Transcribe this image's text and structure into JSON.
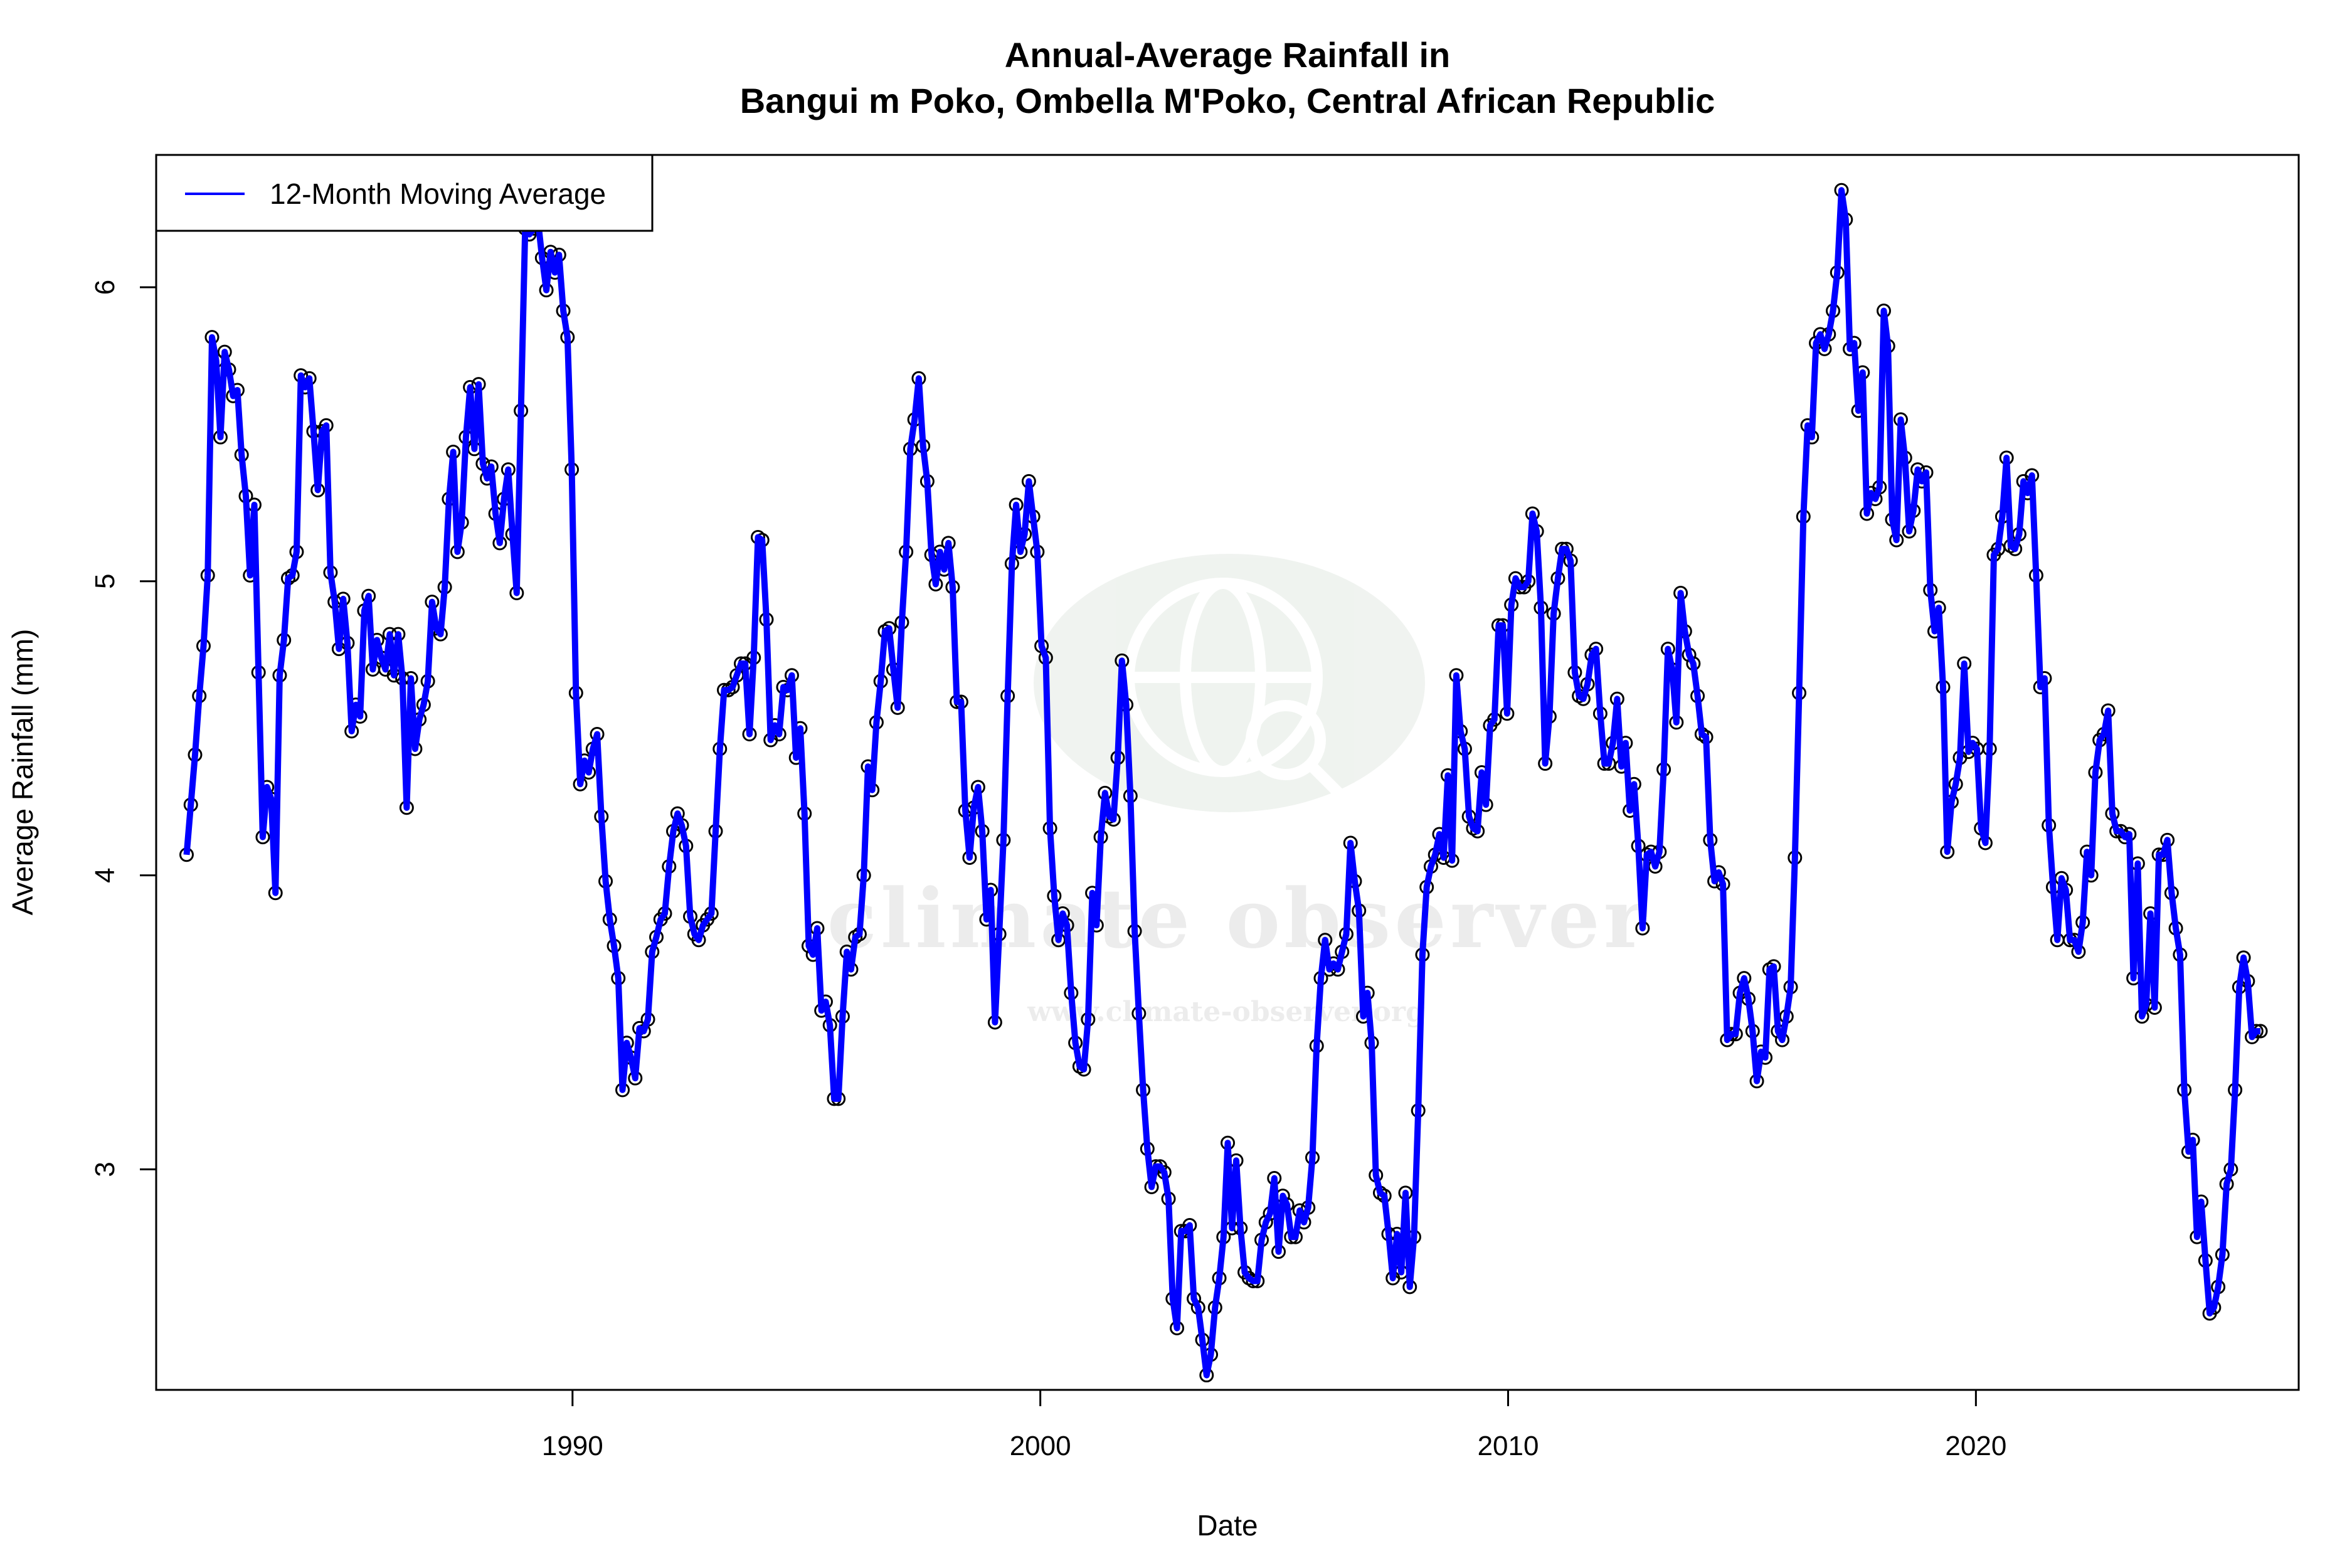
{
  "chart_data": {
    "type": "line",
    "title": "Annual-Average Rainfall in",
    "subtitle": "Bangui m Poko, Ombella M'Poko, Central African Republic",
    "xlabel": "Date",
    "ylabel": "Average Rainfall (mm)",
    "x_ticks": [
      "1990",
      "2000",
      "2010",
      "2020"
    ],
    "y_ticks": [
      "3",
      "4",
      "5",
      "6"
    ],
    "xlim": [
      1981.1,
      2026.9
    ],
    "ylim": [
      2.25,
      6.45
    ],
    "grid": false,
    "legend": {
      "position": "top-left",
      "entries": [
        "12-Month Moving Average"
      ]
    },
    "series": [
      {
        "name": "12-Month Moving Average",
        "color": "#0000ff",
        "markers": "open-circle",
        "date_start": "1981-10",
        "date_end": "2026-02",
        "frequency": "monthly",
        "values": [
          4.07,
          4.24,
          4.41,
          4.61,
          4.78,
          5.02,
          5.83,
          5.75,
          5.49,
          5.78,
          5.72,
          5.63,
          5.65,
          5.43,
          5.29,
          5.02,
          5.26,
          4.69,
          4.13,
          4.3,
          4.26,
          3.94,
          4.68,
          4.8,
          5.01,
          5.02,
          5.1,
          5.7,
          5.66,
          5.69,
          5.51,
          5.31,
          5.51,
          5.53,
          5.03,
          4.93,
          4.77,
          4.94,
          4.79,
          4.49,
          4.58,
          4.54,
          4.9,
          4.95,
          4.7,
          4.8,
          4.74,
          4.7,
          4.82,
          4.68,
          4.82,
          4.67,
          4.23,
          4.67,
          4.43,
          4.53,
          4.58,
          4.66,
          4.93,
          4.84,
          4.82,
          4.98,
          5.28,
          5.44,
          5.1,
          5.2,
          5.49,
          5.66,
          5.45,
          5.67,
          5.4,
          5.35,
          5.39,
          5.23,
          5.13,
          5.28,
          5.38,
          5.16,
          4.96,
          5.58,
          6.2,
          6.18,
          6.2,
          6.23,
          6.1,
          5.99,
          6.12,
          6.05,
          6.11,
          5.92,
          5.83,
          5.38,
          4.62,
          4.31,
          4.39,
          4.35,
          4.43,
          4.48,
          4.2,
          3.98,
          3.85,
          3.76,
          3.65,
          3.27,
          3.43,
          3.38,
          3.31,
          3.48,
          3.47,
          3.51,
          3.74,
          3.79,
          3.85,
          3.87,
          4.03,
          4.15,
          4.21,
          4.17,
          4.1,
          3.86,
          3.8,
          3.78,
          3.83,
          3.85,
          3.87,
          4.15,
          4.43,
          4.63,
          4.63,
          4.64,
          4.68,
          4.72,
          4.72,
          4.48,
          4.74,
          5.15,
          5.14,
          4.87,
          4.46,
          4.51,
          4.48,
          4.64,
          4.63,
          4.68,
          4.4,
          4.5,
          4.21,
          3.76,
          3.73,
          3.82,
          3.54,
          3.57,
          3.49,
          3.24,
          3.24,
          3.52,
          3.74,
          3.68,
          3.79,
          3.8,
          4.0,
          4.37,
          4.29,
          4.52,
          4.66,
          4.83,
          4.84,
          4.7,
          4.57,
          4.86,
          5.1,
          5.45,
          5.55,
          5.69,
          5.46,
          5.34,
          5.09,
          4.99,
          5.1,
          5.04,
          5.13,
          4.98,
          4.59,
          4.59,
          4.22,
          4.06,
          4.23,
          4.3,
          4.15,
          3.85,
          3.95,
          3.5,
          3.8,
          4.12,
          4.61,
          5.06,
          5.26,
          5.1,
          5.16,
          5.34,
          5.22,
          5.1,
          4.78,
          4.74,
          4.16,
          3.93,
          3.78,
          3.87,
          3.83,
          3.6,
          3.43,
          3.35,
          3.34,
          3.51,
          3.94,
          3.83,
          4.13,
          4.28,
          4.2,
          4.19,
          4.4,
          4.73,
          4.58,
          4.27,
          3.81,
          3.53,
          3.27,
          3.07,
          2.94,
          3.01,
          3.01,
          2.99,
          2.9,
          2.56,
          2.46,
          2.79,
          2.79,
          2.81,
          2.56,
          2.53,
          2.42,
          2.3,
          2.37,
          2.53,
          2.63,
          2.77,
          3.09,
          2.8,
          3.03,
          2.8,
          2.65,
          2.63,
          2.62,
          2.62,
          2.76,
          2.82,
          2.85,
          2.97,
          2.72,
          2.91,
          2.88,
          2.77,
          2.77,
          2.86,
          2.82,
          2.87,
          3.04,
          3.42,
          3.65,
          3.78,
          3.68,
          3.7,
          3.68,
          3.74,
          3.8,
          4.11,
          3.98,
          3.88,
          3.52,
          3.6,
          3.43,
          2.98,
          2.92,
          2.91,
          2.78,
          2.63,
          2.78,
          2.65,
          2.92,
          2.6,
          2.77,
          3.2,
          3.73,
          3.96,
          4.03,
          4.07,
          4.14,
          4.06,
          4.34,
          4.05,
          4.68,
          4.49,
          4.43,
          4.2,
          4.16,
          4.15,
          4.35,
          4.24,
          4.51,
          4.53,
          4.85,
          4.85,
          4.55,
          4.92,
          5.01,
          4.98,
          4.98,
          5.0,
          5.23,
          5.17,
          4.91,
          4.38,
          4.54,
          4.89,
          5.01,
          5.11,
          5.11,
          5.07,
          4.69,
          4.61,
          4.6,
          4.65,
          4.75,
          4.77,
          4.55,
          4.38,
          4.38,
          4.45,
          4.6,
          4.37,
          4.45,
          4.22,
          4.31,
          4.1,
          3.82,
          4.07,
          4.08,
          4.03,
          4.08,
          4.36,
          4.77,
          4.7,
          4.52,
          4.96,
          4.83,
          4.75,
          4.72,
          4.61,
          4.48,
          4.47,
          4.12,
          3.98,
          4.01,
          3.97,
          3.44,
          3.46,
          3.46,
          3.6,
          3.65,
          3.58,
          3.47,
          3.3,
          3.4,
          3.38,
          3.68,
          3.69,
          3.47,
          3.44,
          3.52,
          3.62,
          4.06,
          4.62,
          5.22,
          5.53,
          5.49,
          5.81,
          5.84,
          5.79,
          5.84,
          5.92,
          6.05,
          6.33,
          6.23,
          5.79,
          5.81,
          5.58,
          5.71,
          5.23,
          5.3,
          5.28,
          5.32,
          5.92,
          5.8,
          5.21,
          5.14,
          5.55,
          5.42,
          5.17,
          5.24,
          5.38,
          5.34,
          5.37,
          4.97,
          4.83,
          4.91,
          4.64,
          4.08,
          4.25,
          4.31,
          4.4,
          4.72,
          4.42,
          4.45,
          4.43,
          4.16,
          4.11,
          4.43,
          5.09,
          5.11,
          5.22,
          5.42,
          5.12,
          5.11,
          5.16,
          5.34,
          5.3,
          5.36,
          5.02,
          4.64,
          4.67,
          4.17,
          3.96,
          3.78,
          3.99,
          3.95,
          3.78,
          3.78,
          3.74,
          3.84,
          4.08,
          4.0,
          4.35,
          4.46,
          4.48,
          4.56,
          4.21,
          4.15,
          4.15,
          4.13,
          4.14,
          3.65,
          4.04,
          3.52,
          3.56,
          3.87,
          3.55,
          4.07,
          4.07,
          4.12,
          3.94,
          3.82,
          3.73,
          3.27,
          3.06,
          3.1,
          2.77,
          2.89,
          2.69,
          2.51,
          2.53,
          2.6,
          2.71,
          2.95,
          3.0,
          3.27,
          3.62,
          3.72,
          3.64,
          3.45,
          3.47,
          3.47
        ]
      }
    ]
  },
  "watermark": {
    "name": "climate observer",
    "url": "www.climate-observer.org",
    "color": "#e8ede8"
  }
}
